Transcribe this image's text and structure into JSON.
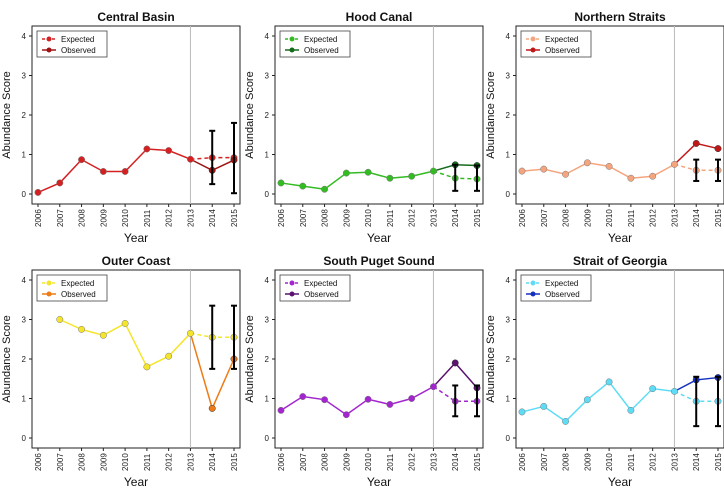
{
  "figure": {
    "x_axis_label": "Year",
    "y_axis_label": "Abundance Score",
    "legend_expected": "Expected",
    "legend_observed": "Observed"
  },
  "chart_data": [
    {
      "type": "line",
      "title": "Central Basin",
      "xlabel": "Year",
      "ylabel": "Abundance Score",
      "ylim": [
        0,
        4
      ],
      "y_ticks": [
        0,
        1,
        2,
        3,
        4
      ],
      "x_ticks": [
        "2006",
        "2007",
        "2008",
        "2009",
        "2010",
        "2011",
        "2012",
        "2013",
        "2014",
        "2015"
      ],
      "legend_position": "top-left",
      "colors": {
        "expected": "#d42020",
        "observed": "#a01212"
      },
      "series": [
        {
          "name": "Expected",
          "style": "dashed",
          "x": [
            2006,
            2007,
            2008,
            2009,
            2010,
            2011,
            2012,
            2013,
            2014,
            2015
          ],
          "y": [
            0.04,
            0.28,
            0.87,
            0.57,
            0.57,
            1.14,
            1.1,
            0.88,
            0.92,
            0.92
          ]
        },
        {
          "name": "Observed",
          "style": "solid",
          "x": [
            2013,
            2014,
            2015
          ],
          "y": [
            0.88,
            0.6,
            0.86
          ]
        }
      ],
      "error_bars": [
        {
          "x": 2014,
          "low": 0.25,
          "high": 1.6
        },
        {
          "x": 2015,
          "low": 0.02,
          "high": 1.8
        }
      ],
      "vertical_line_x": 2013
    },
    {
      "type": "line",
      "title": "Hood Canal",
      "xlabel": "Year",
      "ylabel": "Abundance Score",
      "ylim": [
        0,
        4
      ],
      "y_ticks": [
        0,
        1,
        2,
        3,
        4
      ],
      "x_ticks": [
        "2006",
        "2007",
        "2008",
        "2009",
        "2010",
        "2011",
        "2012",
        "2013",
        "2014",
        "2015"
      ],
      "legend_position": "top-left",
      "colors": {
        "expected": "#33bb22",
        "observed": "#146b1c"
      },
      "series": [
        {
          "name": "Expected",
          "style": "dashed",
          "x": [
            2006,
            2007,
            2008,
            2009,
            2010,
            2011,
            2012,
            2013,
            2014,
            2015
          ],
          "y": [
            0.28,
            0.2,
            0.12,
            0.53,
            0.55,
            0.4,
            0.45,
            0.58,
            0.4,
            0.38
          ]
        },
        {
          "name": "Observed",
          "style": "solid",
          "x": [
            2013,
            2014,
            2015
          ],
          "y": [
            0.58,
            0.74,
            0.72
          ]
        }
      ],
      "error_bars": [
        {
          "x": 2014,
          "low": 0.08,
          "high": 0.74
        },
        {
          "x": 2015,
          "low": 0.08,
          "high": 0.72
        }
      ],
      "vertical_line_x": 2013
    },
    {
      "type": "line",
      "title": "Northern Straits",
      "xlabel": "Year",
      "ylabel": "Abundance Score",
      "ylim": [
        0,
        4
      ],
      "y_ticks": [
        0,
        1,
        2,
        3,
        4
      ],
      "x_ticks": [
        "2006",
        "2007",
        "2008",
        "2009",
        "2010",
        "2011",
        "2012",
        "2013",
        "2014",
        "2015"
      ],
      "legend_position": "top-left",
      "colors": {
        "expected": "#f5a57e",
        "observed": "#c01818"
      },
      "series": [
        {
          "name": "Expected",
          "style": "dashed",
          "x": [
            2006,
            2007,
            2008,
            2009,
            2010,
            2011,
            2012,
            2013,
            2014,
            2015
          ],
          "y": [
            0.58,
            0.63,
            0.5,
            0.79,
            0.7,
            0.4,
            0.45,
            0.75,
            0.6,
            0.6
          ]
        },
        {
          "name": "Observed",
          "style": "solid",
          "x": [
            2013,
            2014,
            2015
          ],
          "y": [
            0.75,
            1.28,
            1.15
          ]
        }
      ],
      "error_bars": [
        {
          "x": 2014,
          "low": 0.33,
          "high": 0.87
        },
        {
          "x": 2015,
          "low": 0.33,
          "high": 0.87
        }
      ],
      "vertical_line_x": 2013
    },
    {
      "type": "line",
      "title": "Outer Coast",
      "xlabel": "Year",
      "ylabel": "Abundance Score",
      "ylim": [
        0,
        4
      ],
      "y_ticks": [
        0,
        1,
        2,
        3,
        4
      ],
      "x_ticks": [
        "2006",
        "2007",
        "2008",
        "2009",
        "2010",
        "2011",
        "2012",
        "2013",
        "2014",
        "2015"
      ],
      "legend_position": "top-left",
      "colors": {
        "expected": "#f5e52a",
        "observed": "#ee7b16"
      },
      "series": [
        {
          "name": "Expected",
          "style": "dashed",
          "x": [
            2007,
            2008,
            2009,
            2010,
            2011,
            2012,
            2013,
            2014,
            2015
          ],
          "y": [
            3.0,
            2.75,
            2.6,
            2.9,
            1.8,
            2.07,
            2.65,
            2.55,
            2.55
          ]
        },
        {
          "name": "Observed",
          "style": "solid",
          "x": [
            2013,
            2014,
            2015
          ],
          "y": [
            2.65,
            0.75,
            2.0
          ]
        }
      ],
      "error_bars": [
        {
          "x": 2014,
          "low": 1.75,
          "high": 3.35
        },
        {
          "x": 2015,
          "low": 1.75,
          "high": 3.35
        }
      ],
      "vertical_line_x": 2013
    },
    {
      "type": "line",
      "title": "South Puget Sound",
      "xlabel": "Year",
      "ylabel": "Abundance Score",
      "ylim": [
        0,
        4
      ],
      "y_ticks": [
        0,
        1,
        2,
        3,
        4
      ],
      "x_ticks": [
        "2006",
        "2007",
        "2008",
        "2009",
        "2010",
        "2011",
        "2012",
        "2013",
        "2014",
        "2015"
      ],
      "legend_position": "top-left",
      "colors": {
        "expected": "#a325cf",
        "observed": "#5b1270"
      },
      "series": [
        {
          "name": "Expected",
          "style": "dashed",
          "x": [
            2006,
            2007,
            2008,
            2009,
            2010,
            2011,
            2012,
            2013,
            2014,
            2015
          ],
          "y": [
            0.7,
            1.05,
            0.97,
            0.59,
            0.98,
            0.85,
            1.0,
            1.3,
            0.93,
            0.93
          ]
        },
        {
          "name": "Observed",
          "style": "solid",
          "x": [
            2013,
            2014,
            2015
          ],
          "y": [
            1.3,
            1.9,
            1.27
          ]
        }
      ],
      "error_bars": [
        {
          "x": 2014,
          "low": 0.55,
          "high": 1.33
        },
        {
          "x": 2015,
          "low": 0.55,
          "high": 1.33
        }
      ],
      "vertical_line_x": 2013
    },
    {
      "type": "line",
      "title": "Strait of Georgia",
      "xlabel": "Year",
      "ylabel": "Abundance Score",
      "ylim": [
        0,
        4
      ],
      "y_ticks": [
        0,
        1,
        2,
        3,
        4
      ],
      "x_ticks": [
        "2006",
        "2007",
        "2008",
        "2009",
        "2010",
        "2011",
        "2012",
        "2013",
        "2014",
        "2015"
      ],
      "legend_position": "top-left",
      "colors": {
        "expected": "#5fdcf5",
        "observed": "#1530c0"
      },
      "series": [
        {
          "name": "Expected",
          "style": "dashed",
          "x": [
            2006,
            2007,
            2008,
            2009,
            2010,
            2011,
            2012,
            2013,
            2014,
            2015
          ],
          "y": [
            0.66,
            0.8,
            0.42,
            0.97,
            1.42,
            0.7,
            1.25,
            1.18,
            0.93,
            0.93
          ]
        },
        {
          "name": "Observed",
          "style": "solid",
          "x": [
            2013,
            2014,
            2015
          ],
          "y": [
            1.18,
            1.47,
            1.53
          ]
        }
      ],
      "error_bars": [
        {
          "x": 2014,
          "low": 0.3,
          "high": 1.55
        },
        {
          "x": 2015,
          "low": 0.3,
          "high": 1.55
        }
      ],
      "vertical_line_x": 2013
    }
  ]
}
